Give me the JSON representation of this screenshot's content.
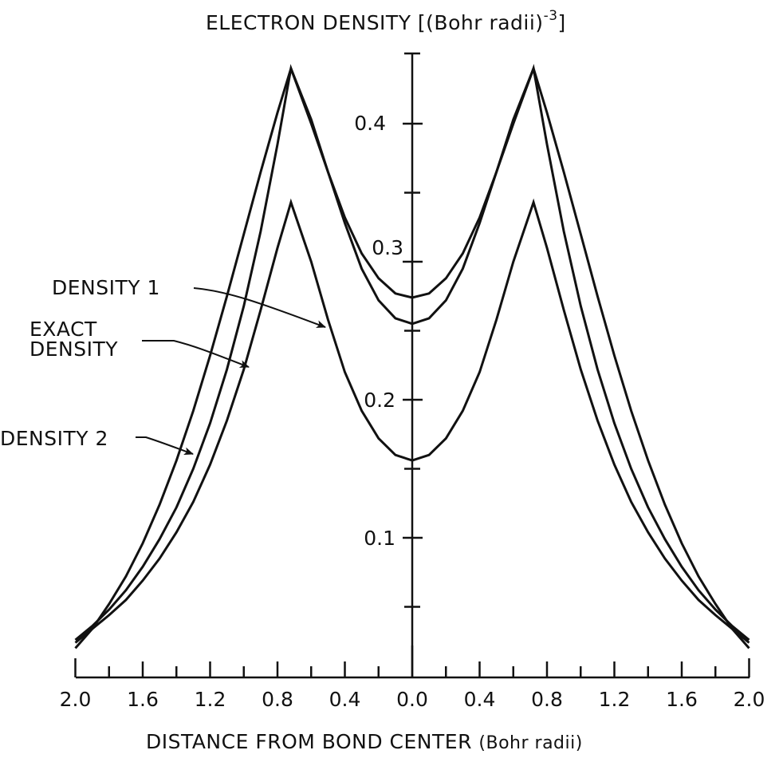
{
  "chart_data": {
    "type": "line",
    "title": "ELECTRON DENSITY [(Bohr radii)^-3]",
    "ylabel": "ELECTRON DENSITY [(Bohr radii)^-3]",
    "xlabel": "DISTANCE FROM BOND CENTER (Bohr radii)",
    "x_tick_labels": [
      "2.0",
      "1.6",
      "1.2",
      "0.8",
      "0.4",
      "0.0",
      "0.4",
      "0.8",
      "1.2",
      "1.6",
      "2.0"
    ],
    "y_tick_labels": [
      "0.1",
      "0.2",
      "0.3",
      "0.4"
    ],
    "xlim": [
      -2.0,
      2.0
    ],
    "ylim": [
      0.0,
      0.45
    ],
    "grid": false,
    "symmetric_about_zero": true,
    "x": [
      0.0,
      0.1,
      0.2,
      0.3,
      0.4,
      0.5,
      0.6,
      0.72,
      0.8,
      0.9,
      1.0,
      1.1,
      1.2,
      1.3,
      1.4,
      1.5,
      1.6,
      1.7,
      1.8,
      1.9,
      2.0
    ],
    "series": [
      {
        "name": "EXACT DENSITY",
        "values": [
          0.274,
          0.277,
          0.288,
          0.306,
          0.332,
          0.365,
          0.4,
          0.44,
          0.385,
          0.322,
          0.268,
          0.222,
          0.183,
          0.15,
          0.122,
          0.099,
          0.079,
          0.062,
          0.048,
          0.036,
          0.026
        ]
      },
      {
        "name": "DENSITY 1",
        "values": [
          0.156,
          0.16,
          0.172,
          0.192,
          0.22,
          0.258,
          0.3,
          0.343,
          0.31,
          0.265,
          0.222,
          0.185,
          0.153,
          0.126,
          0.104,
          0.085,
          0.069,
          0.055,
          0.044,
          0.034,
          0.024
        ]
      },
      {
        "name": "DENSITY 2",
        "values": [
          0.255,
          0.259,
          0.272,
          0.295,
          0.328,
          0.365,
          0.403,
          0.44,
          0.408,
          0.365,
          0.32,
          0.275,
          0.232,
          0.192,
          0.156,
          0.124,
          0.096,
          0.072,
          0.052,
          0.034,
          0.02
        ]
      }
    ],
    "annotations": [
      {
        "text": "DENSITY 1",
        "points_to": "DENSITY 1"
      },
      {
        "text": "EXACT DENSITY",
        "points_to": "EXACT DENSITY"
      },
      {
        "text": "DENSITY 2",
        "points_to": "DENSITY 2"
      }
    ]
  },
  "labels": {
    "ylabel_main": "ELECTRON DENSITY [(Bohr radii)",
    "ylabel_exp": "-3",
    "ylabel_close": "]",
    "xlabel_main": "DISTANCE FROM BOND CENTER",
    "xlabel_unit": "(Bohr radii)",
    "density1": "DENSITY 1",
    "exact_line1": "EXACT",
    "exact_line2": "DENSITY",
    "density2": "DENSITY 2"
  },
  "style": {
    "line_color": "#111111",
    "background": "#ffffff"
  }
}
